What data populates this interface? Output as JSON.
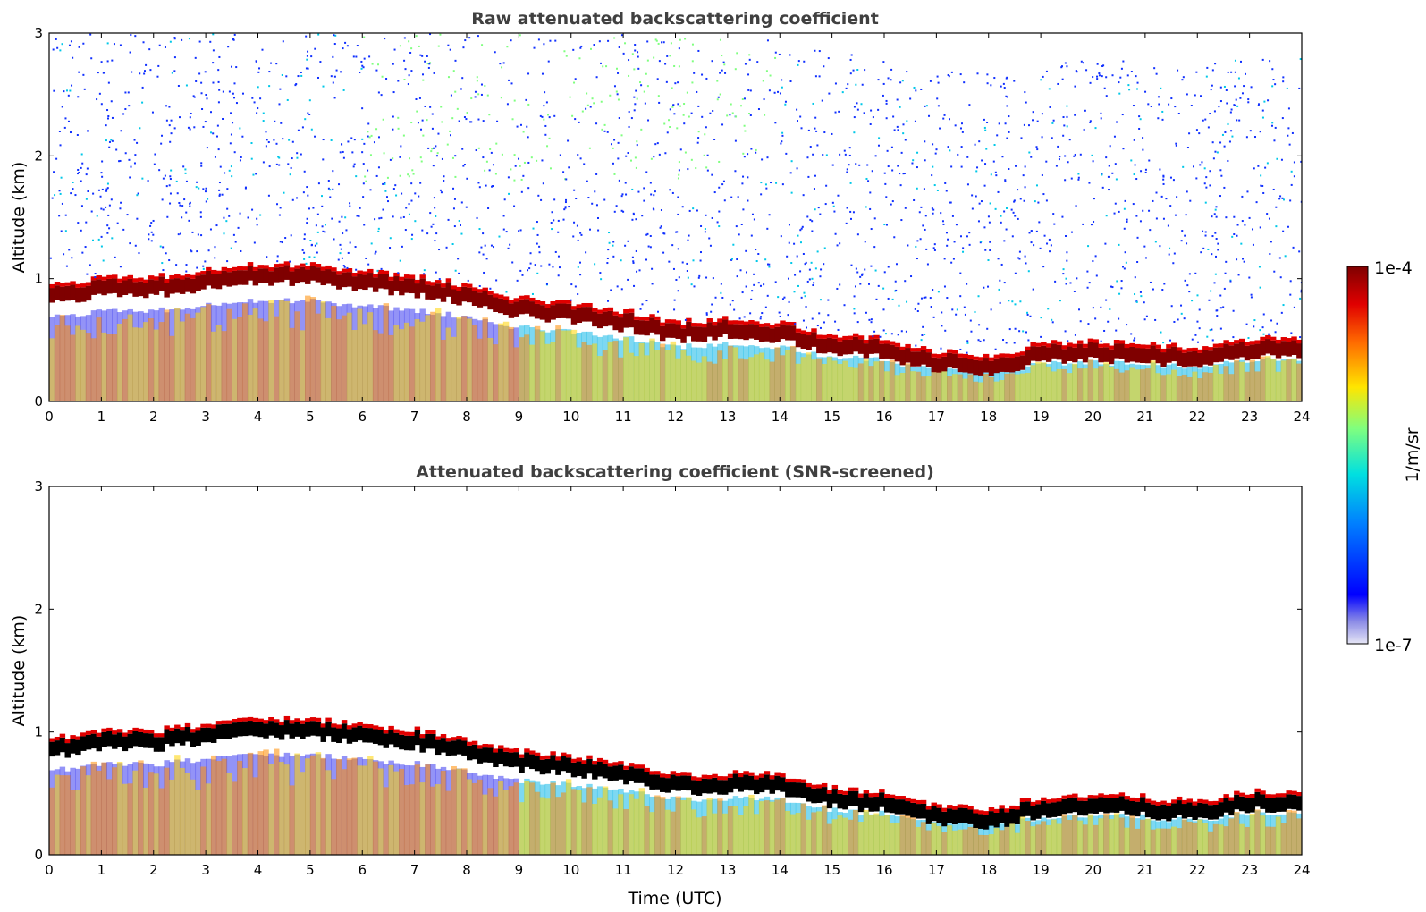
{
  "chart_data": [
    {
      "type": "heatmap",
      "title": "Raw attenuated backscattering coefficient",
      "xlabel": "",
      "ylabel": "Altitude (km)",
      "xlim": [
        0,
        24
      ],
      "ylim": [
        0,
        3
      ],
      "xticks": [
        "0",
        "1",
        "2",
        "3",
        "4",
        "5",
        "6",
        "7",
        "8",
        "9",
        "10",
        "11",
        "12",
        "13",
        "14",
        "15",
        "16",
        "17",
        "18",
        "19",
        "20",
        "21",
        "22",
        "23",
        "24"
      ],
      "yticks": [
        "0",
        "1",
        "2",
        "3"
      ],
      "boundary_layer_top_km": {
        "x": [
          0,
          0.5,
          1,
          2,
          3,
          4,
          5,
          6,
          7,
          8,
          9,
          10,
          11,
          12,
          13,
          14,
          15,
          16,
          17,
          18,
          19,
          20,
          21,
          22,
          23,
          24
        ],
        "y": [
          0.88,
          0.86,
          0.93,
          0.92,
          0.98,
          1.03,
          1.02,
          0.97,
          0.93,
          0.86,
          0.75,
          0.72,
          0.65,
          0.56,
          0.58,
          0.56,
          0.45,
          0.42,
          0.32,
          0.28,
          0.38,
          0.4,
          0.38,
          0.34,
          0.42,
          0.43
        ]
      }
    },
    {
      "type": "heatmap",
      "title": "Attenuated backscattering coefficient (SNR-screened)",
      "xlabel": "Time (UTC)",
      "ylabel": "Altitude (km)",
      "xlim": [
        0,
        24
      ],
      "ylim": [
        0,
        3
      ],
      "xticks": [
        "0",
        "1",
        "2",
        "3",
        "4",
        "5",
        "6",
        "7",
        "8",
        "9",
        "10",
        "11",
        "12",
        "13",
        "14",
        "15",
        "16",
        "17",
        "18",
        "19",
        "20",
        "21",
        "22",
        "23",
        "24"
      ],
      "yticks": [
        "0",
        "1",
        "2",
        "3"
      ],
      "boundary_layer_top_km": {
        "x": [
          0,
          0.5,
          1,
          2,
          3,
          4,
          5,
          6,
          7,
          8,
          9,
          10,
          11,
          12,
          13,
          14,
          15,
          16,
          17,
          18,
          19,
          20,
          21,
          22,
          23,
          24
        ],
        "y": [
          0.88,
          0.86,
          0.93,
          0.92,
          0.98,
          1.03,
          1.02,
          0.97,
          0.93,
          0.86,
          0.75,
          0.72,
          0.65,
          0.56,
          0.58,
          0.56,
          0.45,
          0.42,
          0.32,
          0.28,
          0.38,
          0.4,
          0.38,
          0.34,
          0.42,
          0.43
        ]
      }
    }
  ],
  "colorbar": {
    "label": "1/m/sr",
    "max_label": "1e-4",
    "min_label": "1e-7",
    "scale": "log",
    "colormap": "jet",
    "colors": [
      "#e6e6f5",
      "#7f7fe0",
      "#0000ff",
      "#0080ff",
      "#00e5e5",
      "#7fff7f",
      "#ffe500",
      "#ff6a00",
      "#e00000",
      "#7f0000"
    ]
  }
}
